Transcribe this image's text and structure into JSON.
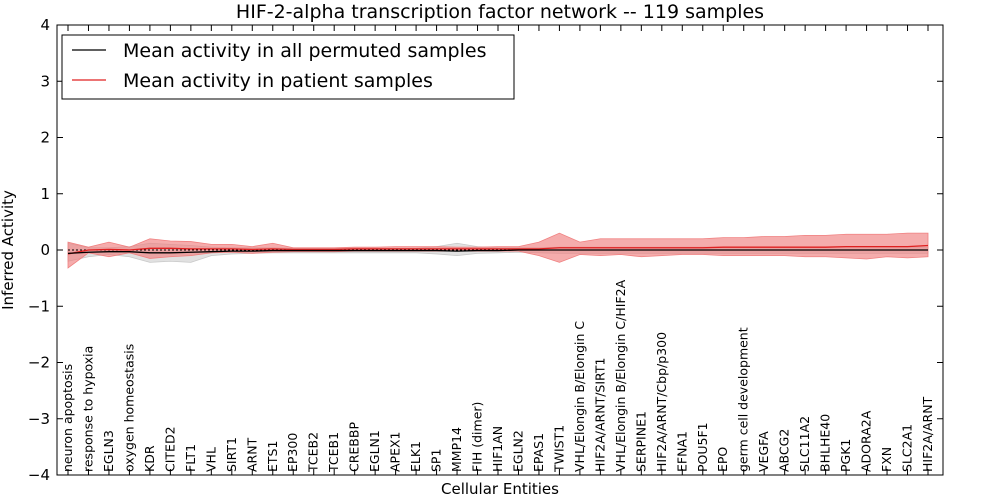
{
  "chart_data": {
    "type": "line",
    "title": "HIF-2-alpha transcription factor network -- 119 samples",
    "xlabel": "Cellular Entities",
    "ylabel": "Inferred Activity",
    "ylim": [
      -4,
      4
    ],
    "yticks": [
      -4,
      -3,
      -2,
      -1,
      0,
      1,
      2,
      3,
      4
    ],
    "ytick_labels": [
      "−4",
      "−3",
      "−2",
      "−1",
      "0",
      "1",
      "2",
      "3",
      "4"
    ],
    "legend_position": "top-left",
    "categories": [
      "neuron apoptosis",
      "response to hypoxia",
      "EGLN3",
      "oxygen homeostasis",
      "KDR",
      "CITED2",
      "FLT1",
      "VHL",
      "SIRT1",
      "ARNT",
      "ETS1",
      "EP300",
      "TCEB2",
      "TCEB1",
      "CREBBP",
      "EGLN1",
      "APEX1",
      "ELK1",
      "SP1",
      "MMP14",
      "FIH (dimer)",
      "HIF1AN",
      "EGLN2",
      "EPAS1",
      "TWIST1",
      "VHL/Elongin B/Elongin C",
      "HIF2A/ARNT/SIRT1",
      "VHL/Elongin B/Elongin C/HIF2A",
      "SERPINE1",
      "HIF2A/ARNT/Cbp/p300",
      "EFNA1",
      "POU5F1",
      "EPO",
      "germ cell development",
      "VEGFA",
      "ABCG2",
      "SLC11A2",
      "BHLHE40",
      "PGK1",
      "ADORA2A",
      "FXN",
      "SLC2A1",
      "HIF2A/ARNT"
    ],
    "series": [
      {
        "name": "Mean activity in all permuted samples",
        "color": "#000000",
        "band_color": "#c8c8c8",
        "values": [
          -0.06,
          -0.04,
          -0.03,
          -0.03,
          -0.05,
          -0.05,
          -0.04,
          -0.03,
          -0.02,
          -0.02,
          -0.01,
          -0.01,
          -0.01,
          -0.01,
          -0.01,
          -0.01,
          -0.01,
          -0.01,
          -0.01,
          -0.02,
          -0.01,
          -0.01,
          0.0,
          0.0,
          0.0,
          0.0,
          0.0,
          0.0,
          0.0,
          0.0,
          0.0,
          0.0,
          0.0,
          0.0,
          0.0,
          0.0,
          0.0,
          0.0,
          0.0,
          0.0,
          0.0,
          0.0,
          0.0
        ],
        "lower": [
          -0.2,
          -0.12,
          -0.08,
          -0.12,
          -0.22,
          -0.2,
          -0.22,
          -0.1,
          -0.07,
          -0.06,
          -0.05,
          -0.05,
          -0.05,
          -0.05,
          -0.05,
          -0.05,
          -0.05,
          -0.05,
          -0.07,
          -0.1,
          -0.06,
          -0.05,
          -0.04,
          -0.05,
          -0.06,
          -0.06,
          -0.06,
          -0.06,
          -0.06,
          -0.06,
          -0.06,
          -0.06,
          -0.06,
          -0.06,
          -0.06,
          -0.06,
          -0.06,
          -0.06,
          -0.06,
          -0.06,
          -0.06,
          -0.06,
          -0.06
        ],
        "upper": [
          0.12,
          0.04,
          0.04,
          0.06,
          0.12,
          0.1,
          0.08,
          0.05,
          0.04,
          0.04,
          0.04,
          0.03,
          0.03,
          0.03,
          0.03,
          0.03,
          0.03,
          0.03,
          0.06,
          0.12,
          0.06,
          0.04,
          0.04,
          0.04,
          0.05,
          0.05,
          0.05,
          0.05,
          0.05,
          0.05,
          0.05,
          0.05,
          0.05,
          0.05,
          0.05,
          0.05,
          0.05,
          0.05,
          0.05,
          0.05,
          0.05,
          0.05,
          0.05
        ]
      },
      {
        "name": "Mean activity in patient samples",
        "color": "#e02020",
        "band_color": "#f08080",
        "values": [
          -0.07,
          0.0,
          0.01,
          0.0,
          0.03,
          0.03,
          0.02,
          0.02,
          0.02,
          0.01,
          0.02,
          0.01,
          0.01,
          0.01,
          0.02,
          0.02,
          0.02,
          0.02,
          0.02,
          0.02,
          0.02,
          0.02,
          0.02,
          0.02,
          0.04,
          0.04,
          0.04,
          0.04,
          0.04,
          0.04,
          0.04,
          0.04,
          0.05,
          0.05,
          0.05,
          0.05,
          0.05,
          0.05,
          0.06,
          0.06,
          0.06,
          0.06,
          0.08
        ],
        "lower": [
          -0.32,
          -0.05,
          -0.12,
          -0.05,
          -0.15,
          -0.12,
          -0.1,
          -0.05,
          -0.04,
          -0.06,
          -0.04,
          -0.03,
          -0.03,
          -0.03,
          -0.02,
          -0.02,
          -0.02,
          -0.02,
          -0.02,
          -0.02,
          -0.02,
          -0.02,
          -0.02,
          -0.1,
          -0.22,
          -0.08,
          -0.1,
          -0.08,
          -0.12,
          -0.1,
          -0.08,
          -0.08,
          -0.1,
          -0.1,
          -0.1,
          -0.1,
          -0.12,
          -0.12,
          -0.14,
          -0.16,
          -0.12,
          -0.14,
          -0.12
        ],
        "upper": [
          0.14,
          0.05,
          0.14,
          0.05,
          0.2,
          0.16,
          0.15,
          0.1,
          0.1,
          0.06,
          0.12,
          0.04,
          0.04,
          0.04,
          0.05,
          0.05,
          0.06,
          0.06,
          0.06,
          0.05,
          0.05,
          0.06,
          0.06,
          0.14,
          0.3,
          0.14,
          0.2,
          0.2,
          0.2,
          0.2,
          0.2,
          0.2,
          0.22,
          0.22,
          0.24,
          0.24,
          0.26,
          0.26,
          0.28,
          0.28,
          0.28,
          0.3,
          0.3
        ]
      }
    ]
  }
}
